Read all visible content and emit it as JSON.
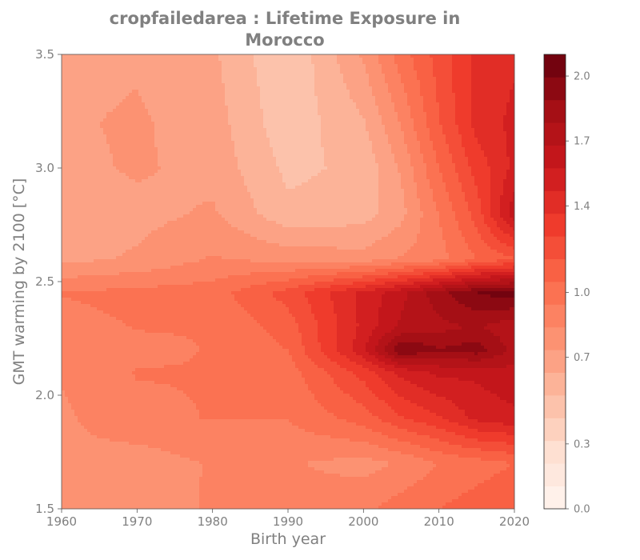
{
  "chart_data": {
    "type": "heatmap",
    "title_lines": [
      "cropfailedarea : Lifetime Exposure in",
      "Morocco"
    ],
    "xlabel": "Birth year",
    "ylabel": "GMT warming by 2100 [°C]",
    "xlim": [
      1960,
      2020
    ],
    "ylim": [
      1.5,
      3.5
    ],
    "x_ticks": [
      "1960",
      "1970",
      "1980",
      "1990",
      "2000",
      "2010",
      "2020"
    ],
    "y_ticks": [
      "1.5",
      "2.0",
      "2.5",
      "3.0",
      "3.5"
    ],
    "colorbar": {
      "cmap": "Reds",
      "range": [
        0.0,
        2.1
      ],
      "ticks": [
        "0.0",
        "0.3",
        "0.7",
        "1.0",
        "1.4",
        "1.7",
        "2.0"
      ],
      "levels": 20
    },
    "x": [
      1960,
      1970,
      1980,
      1990,
      2000,
      2005,
      2010,
      2015,
      2020
    ],
    "y": [
      1.5,
      1.7,
      1.9,
      2.1,
      2.2,
      2.3,
      2.45,
      2.6,
      2.8,
      3.0,
      3.2,
      3.5
    ],
    "z": [
      [
        0.75,
        0.8,
        0.85,
        0.88,
        0.92,
        1.0,
        1.05,
        1.1,
        1.15
      ],
      [
        0.82,
        0.78,
        0.85,
        0.85,
        0.8,
        0.85,
        0.95,
        1.0,
        1.05
      ],
      [
        0.82,
        0.92,
        0.95,
        0.95,
        1.1,
        1.25,
        1.35,
        1.5,
        1.55
      ],
      [
        0.85,
        0.95,
        0.95,
        1.0,
        1.3,
        1.5,
        1.6,
        1.6,
        1.65
      ],
      [
        0.85,
        0.92,
        0.95,
        1.05,
        1.55,
        2.0,
        1.9,
        1.95,
        1.75
      ],
      [
        0.9,
        0.95,
        0.95,
        1.1,
        1.5,
        1.7,
        1.75,
        1.8,
        1.7
      ],
      [
        0.95,
        0.98,
        1.0,
        1.2,
        1.5,
        1.65,
        1.85,
        2.0,
        2.05
      ],
      [
        0.7,
        0.75,
        0.85,
        0.8,
        0.78,
        0.85,
        0.9,
        1.05,
        1.15
      ],
      [
        0.65,
        0.7,
        0.75,
        0.55,
        0.58,
        0.7,
        0.95,
        1.2,
        1.65
      ],
      [
        0.7,
        0.75,
        0.7,
        0.5,
        0.55,
        0.75,
        1.05,
        1.3,
        1.5
      ],
      [
        0.72,
        0.75,
        0.68,
        0.45,
        0.62,
        0.85,
        1.15,
        1.4,
        1.5
      ],
      [
        0.7,
        0.72,
        0.65,
        0.42,
        0.75,
        1.0,
        1.2,
        1.4,
        1.45
      ]
    ]
  }
}
